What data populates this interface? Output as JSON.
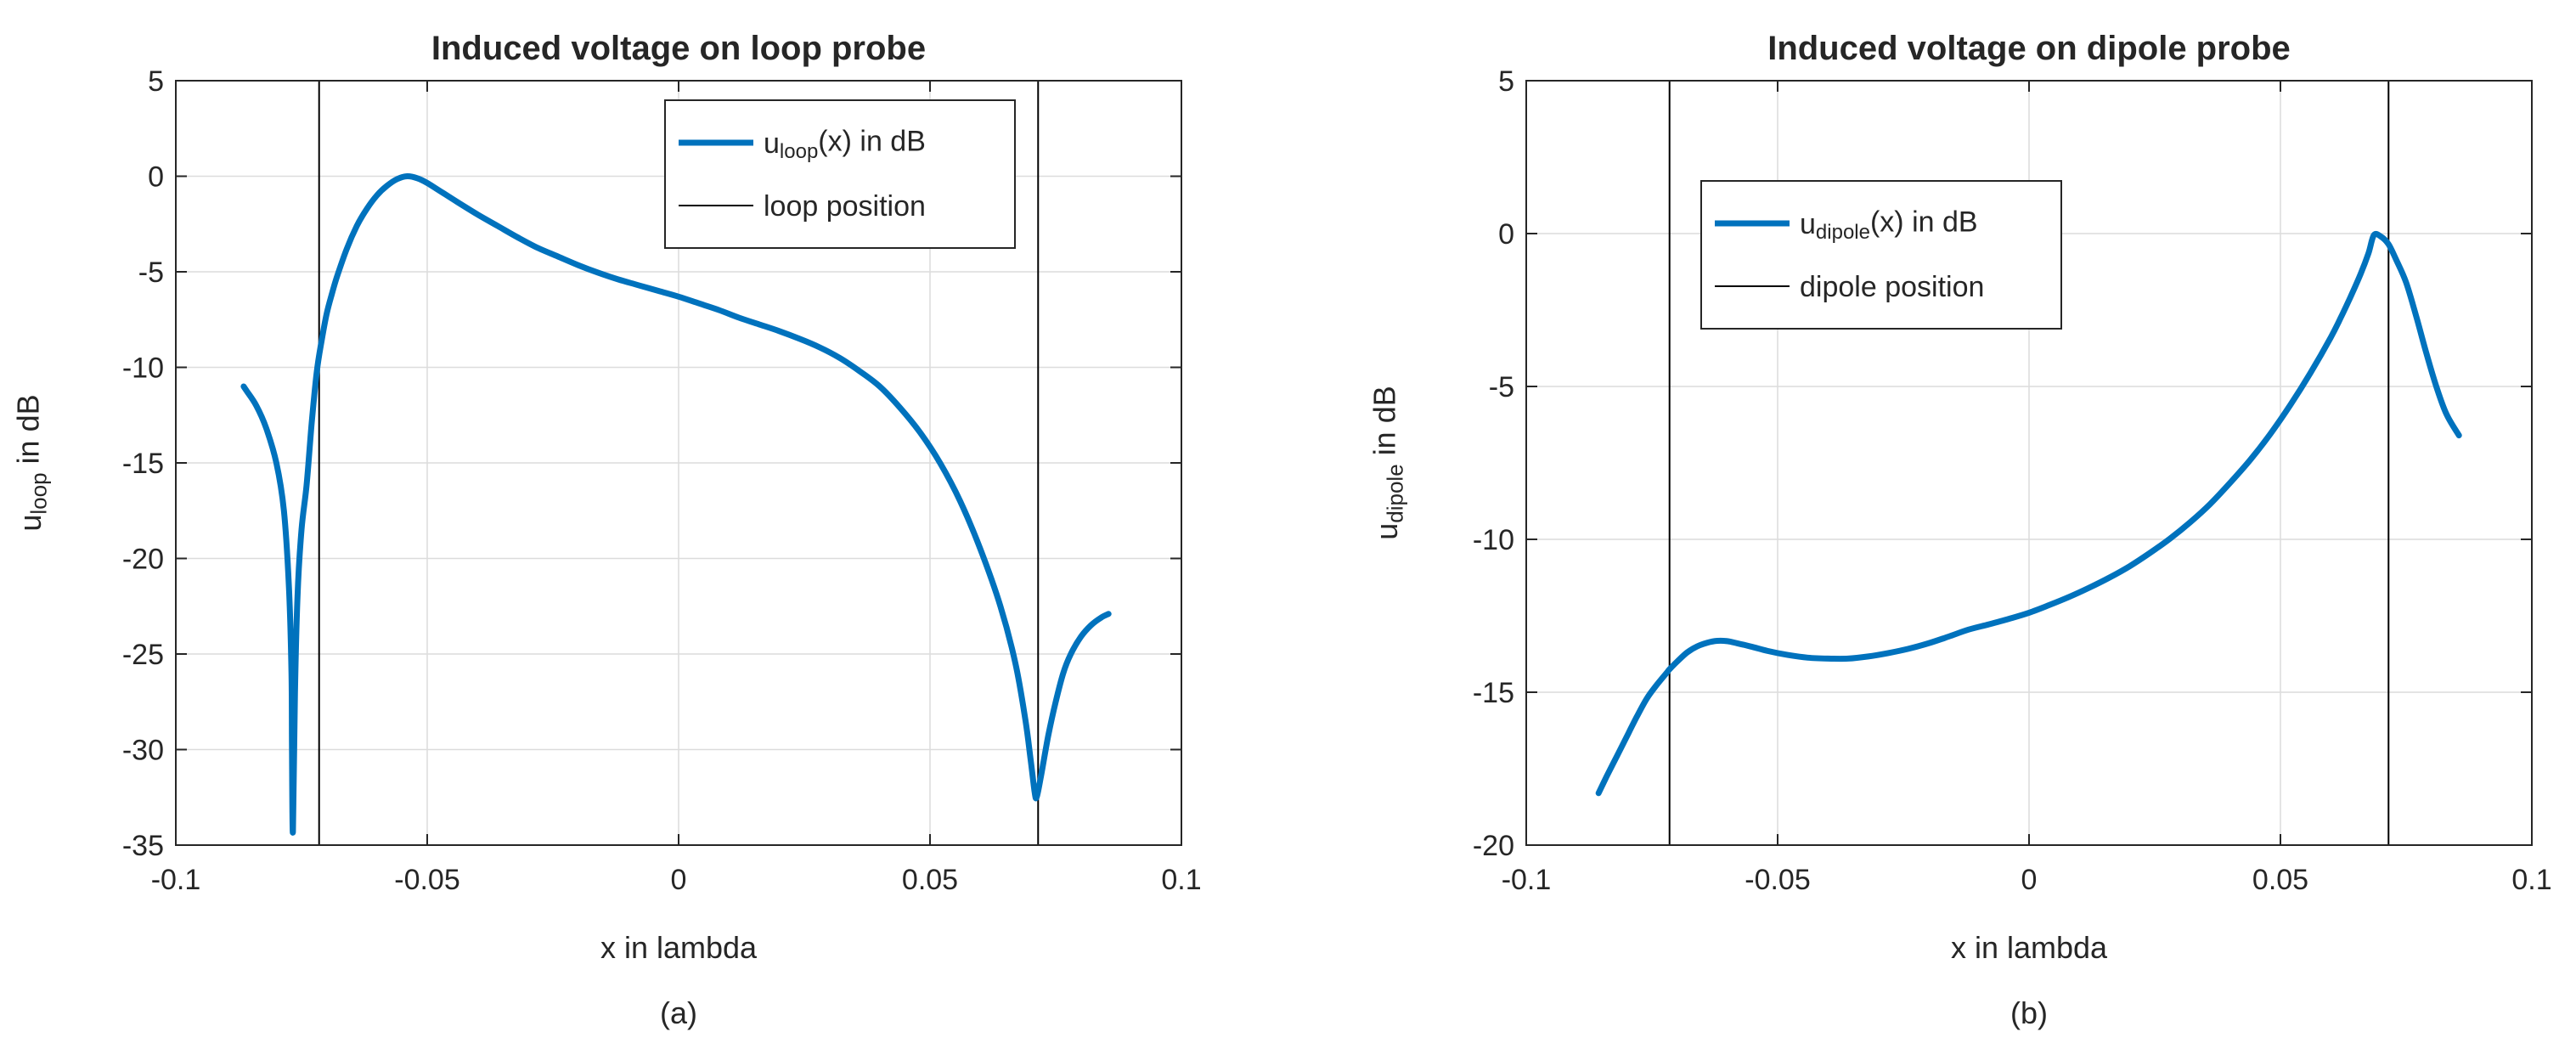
{
  "figure": {
    "background": "#ffffff",
    "accent_blue": "#0072BD",
    "axis_color": "#262626",
    "grid_color": "#dcdcdc",
    "marker_line_color": "#000000"
  },
  "chart_data": [
    {
      "type": "line",
      "title": "Induced voltage on loop probe",
      "xlabel": "x in lambda",
      "caption": "(a)",
      "ylabel": {
        "pre": "u",
        "sub": "loop",
        "post": " in dB"
      },
      "xlim": [
        -0.1,
        0.1
      ],
      "ylim": [
        -35,
        5
      ],
      "xticks": [
        -0.1,
        -0.05,
        0,
        0.05,
        0.1
      ],
      "xtick_labels": [
        "-0.1",
        "-0.05",
        "0",
        "0.05",
        "0.1"
      ],
      "yticks": [
        5,
        0,
        -5,
        -10,
        -15,
        -20,
        -25,
        -30,
        -35
      ],
      "ytick_labels": [
        "5",
        "0",
        "-5",
        "-10",
        "-15",
        "-20",
        "-25",
        "-30",
        "-35"
      ],
      "grid": true,
      "legend_position": "upper center-right inside",
      "legend": [
        {
          "kind": "data-line",
          "color": "#0072BD",
          "stroke_width": 7,
          "label": {
            "pre": "u",
            "sub": "loop",
            "post": "(x) in dB"
          }
        },
        {
          "kind": "marker-line",
          "color": "#000000",
          "stroke_width": 2,
          "label": {
            "pre": "",
            "sub": "",
            "post": "loop position"
          }
        }
      ],
      "position_lines_x": [
        -0.0715,
        0.0715
      ],
      "series": [
        {
          "name": "u_loop(x) in dB",
          "points": [
            [
              -0.0865,
              -11.0
            ],
            [
              -0.086,
              -11.2
            ],
            [
              -0.084,
              -12.0
            ],
            [
              -0.082,
              -13.2
            ],
            [
              -0.08,
              -15.0
            ],
            [
              -0.0785,
              -17.5
            ],
            [
              -0.0775,
              -21.5
            ],
            [
              -0.077,
              -26.0
            ],
            [
              -0.0769,
              -30.0
            ],
            [
              -0.0767,
              -34.3
            ],
            [
              -0.0763,
              -27.0
            ],
            [
              -0.0758,
              -22.0
            ],
            [
              -0.075,
              -18.5
            ],
            [
              -0.074,
              -16.2
            ],
            [
              -0.073,
              -13.0
            ],
            [
              -0.072,
              -10.3
            ],
            [
              -0.071,
              -8.6
            ],
            [
              -0.07,
              -7.2
            ],
            [
              -0.069,
              -6.2
            ],
            [
              -0.068,
              -5.3
            ],
            [
              -0.066,
              -3.8
            ],
            [
              -0.064,
              -2.6
            ],
            [
              -0.062,
              -1.7
            ],
            [
              -0.06,
              -1.0
            ],
            [
              -0.058,
              -0.5
            ],
            [
              -0.056,
              -0.15
            ],
            [
              -0.054,
              0.0
            ],
            [
              -0.052,
              -0.1
            ],
            [
              -0.05,
              -0.35
            ],
            [
              -0.047,
              -0.85
            ],
            [
              -0.044,
              -1.35
            ],
            [
              -0.04,
              -2.0
            ],
            [
              -0.036,
              -2.6
            ],
            [
              -0.032,
              -3.2
            ],
            [
              -0.028,
              -3.75
            ],
            [
              -0.024,
              -4.2
            ],
            [
              -0.02,
              -4.65
            ],
            [
              -0.016,
              -5.05
            ],
            [
              -0.012,
              -5.4
            ],
            [
              -0.008,
              -5.7
            ],
            [
              -0.004,
              -6.0
            ],
            [
              0.0,
              -6.3
            ],
            [
              0.004,
              -6.65
            ],
            [
              0.008,
              -7.0
            ],
            [
              0.012,
              -7.4
            ],
            [
              0.016,
              -7.75
            ],
            [
              0.02,
              -8.1
            ],
            [
              0.024,
              -8.5
            ],
            [
              0.028,
              -8.95
            ],
            [
              0.032,
              -9.5
            ],
            [
              0.036,
              -10.2
            ],
            [
              0.04,
              -11.0
            ],
            [
              0.044,
              -12.1
            ],
            [
              0.048,
              -13.4
            ],
            [
              0.052,
              -15.0
            ],
            [
              0.056,
              -17.0
            ],
            [
              0.06,
              -19.5
            ],
            [
              0.064,
              -22.5
            ],
            [
              0.067,
              -25.5
            ],
            [
              0.069,
              -28.5
            ],
            [
              0.07,
              -30.5
            ],
            [
              0.0708,
              -32.2
            ],
            [
              0.0712,
              -32.5
            ],
            [
              0.072,
              -31.5
            ],
            [
              0.0735,
              -29.3
            ],
            [
              0.075,
              -27.5
            ],
            [
              0.0765,
              -26.0
            ],
            [
              0.078,
              -25.0
            ],
            [
              0.08,
              -24.1
            ],
            [
              0.082,
              -23.5
            ],
            [
              0.084,
              -23.1
            ],
            [
              0.0855,
              -22.9
            ]
          ]
        }
      ]
    },
    {
      "type": "line",
      "title": "Induced voltage on dipole probe",
      "xlabel": "x in lambda",
      "caption": "(b)",
      "ylabel": {
        "pre": "u",
        "sub": "dipole",
        "post": " in dB"
      },
      "xlim": [
        -0.1,
        0.1
      ],
      "ylim": [
        -20,
        5
      ],
      "xticks": [
        -0.1,
        -0.05,
        0,
        0.05,
        0.1
      ],
      "xtick_labels": [
        "-0.1",
        "-0.05",
        "0",
        "0.05",
        "0.1"
      ],
      "yticks": [
        5,
        0,
        -5,
        -10,
        -15,
        -20
      ],
      "ytick_labels": [
        "5",
        "0",
        "-5",
        "-10",
        "-15",
        "-20"
      ],
      "grid": true,
      "legend_position": "upper center-left inside",
      "legend": [
        {
          "kind": "data-line",
          "color": "#0072BD",
          "stroke_width": 7,
          "label": {
            "pre": "u",
            "sub": "dipole",
            "post": "(x) in dB"
          }
        },
        {
          "kind": "marker-line",
          "color": "#000000",
          "stroke_width": 2,
          "label": {
            "pre": "",
            "sub": "",
            "post": "dipole position"
          }
        }
      ],
      "position_lines_x": [
        -0.0715,
        0.0715
      ],
      "series": [
        {
          "name": "u_dipole(x) in dB",
          "points": [
            [
              -0.0856,
              -18.3
            ],
            [
              -0.084,
              -17.75
            ],
            [
              -0.082,
              -17.1
            ],
            [
              -0.08,
              -16.45
            ],
            [
              -0.078,
              -15.8
            ],
            [
              -0.076,
              -15.2
            ],
            [
              -0.074,
              -14.75
            ],
            [
              -0.072,
              -14.35
            ],
            [
              -0.0715,
              -14.25
            ],
            [
              -0.07,
              -14.0
            ],
            [
              -0.068,
              -13.7
            ],
            [
              -0.066,
              -13.5
            ],
            [
              -0.064,
              -13.38
            ],
            [
              -0.062,
              -13.32
            ],
            [
              -0.06,
              -13.33
            ],
            [
              -0.058,
              -13.4
            ],
            [
              -0.055,
              -13.52
            ],
            [
              -0.052,
              -13.65
            ],
            [
              -0.048,
              -13.78
            ],
            [
              -0.044,
              -13.87
            ],
            [
              -0.04,
              -13.9
            ],
            [
              -0.036,
              -13.9
            ],
            [
              -0.032,
              -13.83
            ],
            [
              -0.028,
              -13.72
            ],
            [
              -0.024,
              -13.58
            ],
            [
              -0.02,
              -13.4
            ],
            [
              -0.016,
              -13.18
            ],
            [
              -0.012,
              -12.95
            ],
            [
              -0.008,
              -12.78
            ],
            [
              -0.004,
              -12.6
            ],
            [
              0.0,
              -12.4
            ],
            [
              0.004,
              -12.15
            ],
            [
              0.008,
              -11.88
            ],
            [
              0.012,
              -11.58
            ],
            [
              0.016,
              -11.25
            ],
            [
              0.02,
              -10.88
            ],
            [
              0.024,
              -10.45
            ],
            [
              0.028,
              -9.98
            ],
            [
              0.032,
              -9.45
            ],
            [
              0.036,
              -8.85
            ],
            [
              0.04,
              -8.15
            ],
            [
              0.044,
              -7.4
            ],
            [
              0.048,
              -6.55
            ],
            [
              0.052,
              -5.6
            ],
            [
              0.056,
              -4.55
            ],
            [
              0.06,
              -3.4
            ],
            [
              0.062,
              -2.75
            ],
            [
              0.064,
              -2.05
            ],
            [
              0.066,
              -1.3
            ],
            [
              0.0675,
              -0.65
            ],
            [
              0.0686,
              -0.05
            ],
            [
              0.07,
              -0.1
            ],
            [
              0.0715,
              -0.35
            ],
            [
              0.073,
              -0.85
            ],
            [
              0.075,
              -1.6
            ],
            [
              0.077,
              -2.7
            ],
            [
              0.079,
              -3.9
            ],
            [
              0.081,
              -5.0
            ],
            [
              0.083,
              -5.9
            ],
            [
              0.0855,
              -6.6
            ]
          ]
        }
      ]
    }
  ]
}
